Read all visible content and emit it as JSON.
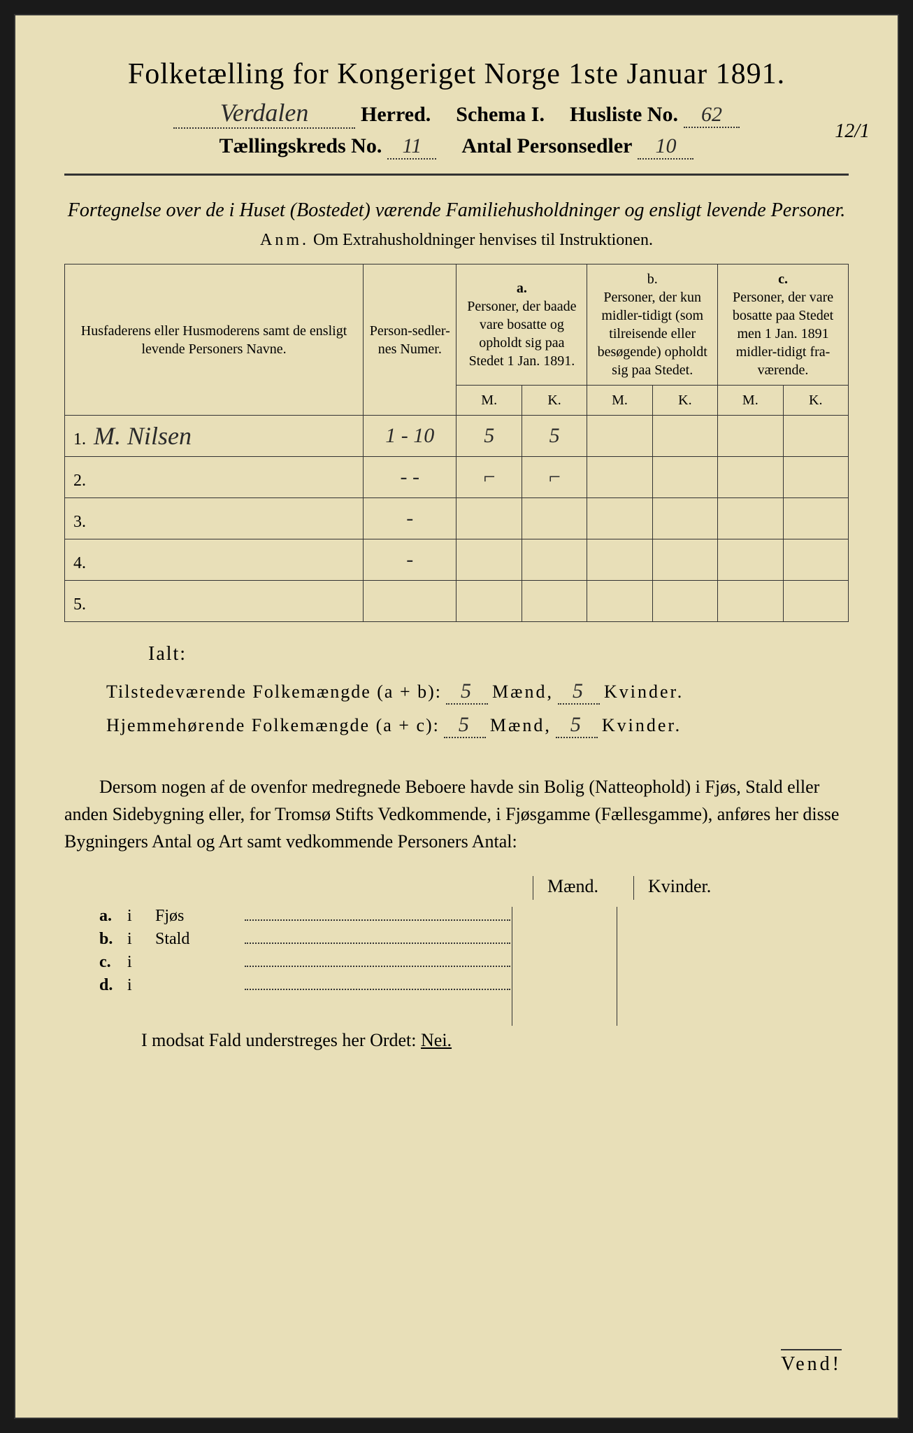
{
  "title": "Folketælling for Kongeriget Norge 1ste Januar 1891.",
  "header": {
    "herred_value": "Verdalen",
    "herred_label": "Herred.",
    "schema_label": "Schema I.",
    "husliste_label": "Husliste No.",
    "husliste_value": "62",
    "margin_note": "12/1",
    "kreds_label": "Tællingskreds No.",
    "kreds_value": "11",
    "antal_label": "Antal Personsedler",
    "antal_value": "10"
  },
  "subtitle": "Fortegnelse over de i Huset (Bostedet) værende Familiehusholdninger og ensligt levende Personer.",
  "anm_label": "Anm.",
  "anm_text": "Om Extrahusholdninger henvises til Instruktionen.",
  "table": {
    "headers": {
      "name": "Husfaderens eller Husmoderens samt de ensligt levende Personers Navne.",
      "numer": "Person-sedler-nes Numer.",
      "a_label": "a.",
      "a_text": "Personer, der baade vare bosatte og opholdt sig paa Stedet 1 Jan. 1891.",
      "b_label": "b.",
      "b_text": "Personer, der kun midler-tidigt (som tilreisende eller besøgende) opholdt sig paa Stedet.",
      "c_label": "c.",
      "c_text": "Personer, der vare bosatte paa Stedet men 1 Jan. 1891 midler-tidigt fra-værende.",
      "m": "M.",
      "k": "K."
    },
    "rows": [
      {
        "num": "1.",
        "name": "M. Nilsen",
        "numer": "1 - 10",
        "a_m": "5",
        "a_k": "5",
        "b_m": "",
        "b_k": "",
        "c_m": "",
        "c_k": ""
      },
      {
        "num": "2.",
        "name": "",
        "numer": "- -",
        "a_m": "⌐",
        "a_k": "⌐",
        "b_m": "",
        "b_k": "",
        "c_m": "",
        "c_k": ""
      },
      {
        "num": "3.",
        "name": "",
        "numer": "-",
        "a_m": "",
        "a_k": "",
        "b_m": "",
        "b_k": "",
        "c_m": "",
        "c_k": ""
      },
      {
        "num": "4.",
        "name": "",
        "numer": "-",
        "a_m": "",
        "a_k": "",
        "b_m": "",
        "b_k": "",
        "c_m": "",
        "c_k": ""
      },
      {
        "num": "5.",
        "name": "",
        "numer": "",
        "a_m": "",
        "a_k": "",
        "b_m": "",
        "b_k": "",
        "c_m": "",
        "c_k": ""
      }
    ]
  },
  "ialt": "Ialt:",
  "summary": {
    "line1_label": "Tilstedeværende Folkemængde (a + b):",
    "line1_m": "5",
    "line1_k": "5",
    "line2_label": "Hjemmehørende Folkemængde (a + c):",
    "line2_m": "5",
    "line2_k": "5",
    "maend": "Mænd,",
    "kvinder": "Kvinder."
  },
  "para": "Dersom nogen af de ovenfor medregnede Beboere havde sin Bolig (Natteophold) i Fjøs, Stald eller anden Sidebygning eller, for Tromsø Stifts Vedkommende, i Fjøsgamme (Fællesgamme), anføres her disse Bygningers Antal og Art samt vedkommende Personers Antal:",
  "mk_maend": "Mænd.",
  "mk_kvinder": "Kvinder.",
  "outbuildings": [
    {
      "lbl": "a.",
      "i": "i",
      "place": "Fjøs"
    },
    {
      "lbl": "b.",
      "i": "i",
      "place": "Stald"
    },
    {
      "lbl": "c.",
      "i": "i",
      "place": ""
    },
    {
      "lbl": "d.",
      "i": "i",
      "place": ""
    }
  ],
  "modsat_pre": "I modsat Fald understreges her Ordet: ",
  "modsat_nei": "Nei.",
  "vend": "Vend!"
}
